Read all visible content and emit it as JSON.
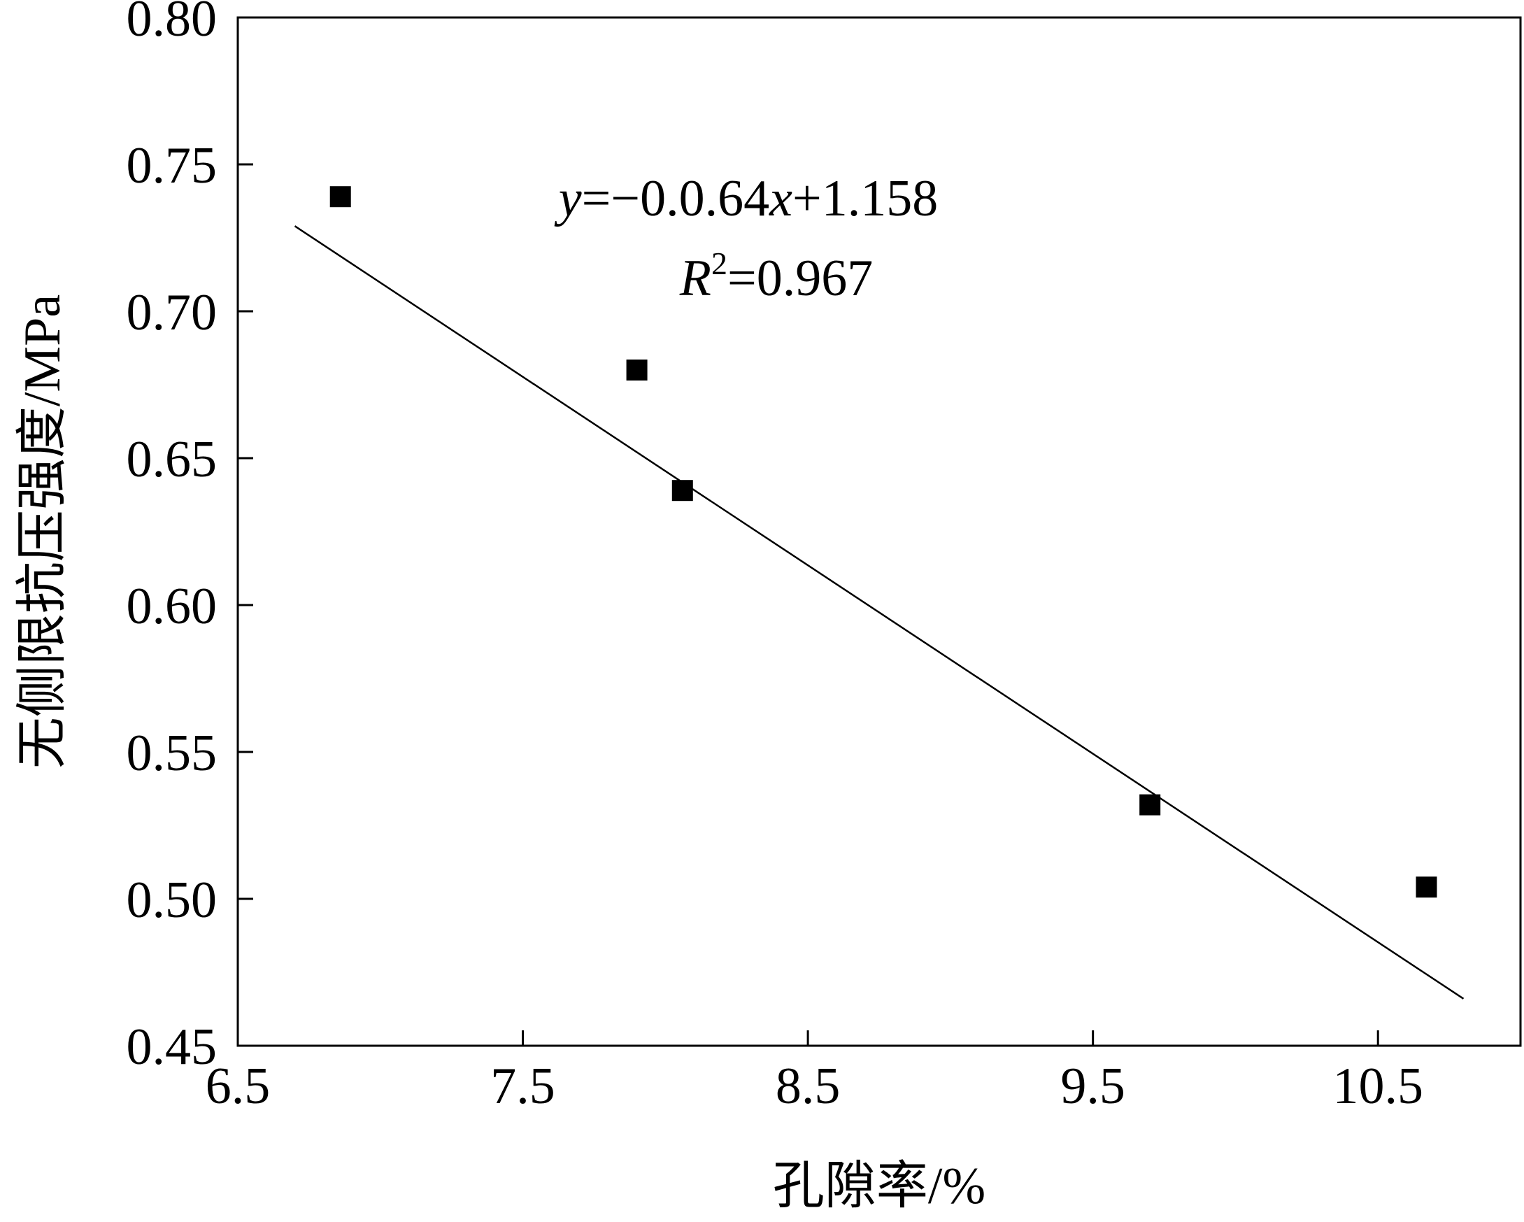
{
  "chart_data": {
    "type": "scatter",
    "title": "",
    "xlabel": "孔隙率/%",
    "ylabel": "无侧限抗压强度/MPa",
    "xlim": [
      6.5,
      11.0
    ],
    "ylim": [
      0.45,
      0.8
    ],
    "xticks": [
      "6.5",
      "7.5",
      "8.5",
      "9.5",
      "10.5"
    ],
    "xtick_values": [
      6.5,
      7.5,
      8.5,
      9.5,
      10.5
    ],
    "yticks": [
      "0.45",
      "0.50",
      "0.55",
      "0.60",
      "0.65",
      "0.70",
      "0.75",
      "0.80"
    ],
    "ytick_values": [
      0.45,
      0.5,
      0.55,
      0.6,
      0.65,
      0.7,
      0.75,
      0.8
    ],
    "grid": false,
    "series": [
      {
        "marker": "square",
        "color": "#000000",
        "x": [
          6.86,
          7.9,
          8.06,
          9.7,
          10.67
        ],
        "y": [
          0.739,
          0.68,
          0.639,
          0.532,
          0.504
        ]
      }
    ],
    "fit_line": {
      "x": [
        6.7,
        10.8
      ],
      "y": [
        0.729,
        0.466
      ],
      "color": "#000000"
    },
    "equation": {
      "y_var": "y",
      "mid": "=−0.0.64",
      "x_var": "x",
      "tail": "+1.158",
      "r_var": "R",
      "r_sup": "2",
      "r_tail": "=0.967"
    }
  }
}
